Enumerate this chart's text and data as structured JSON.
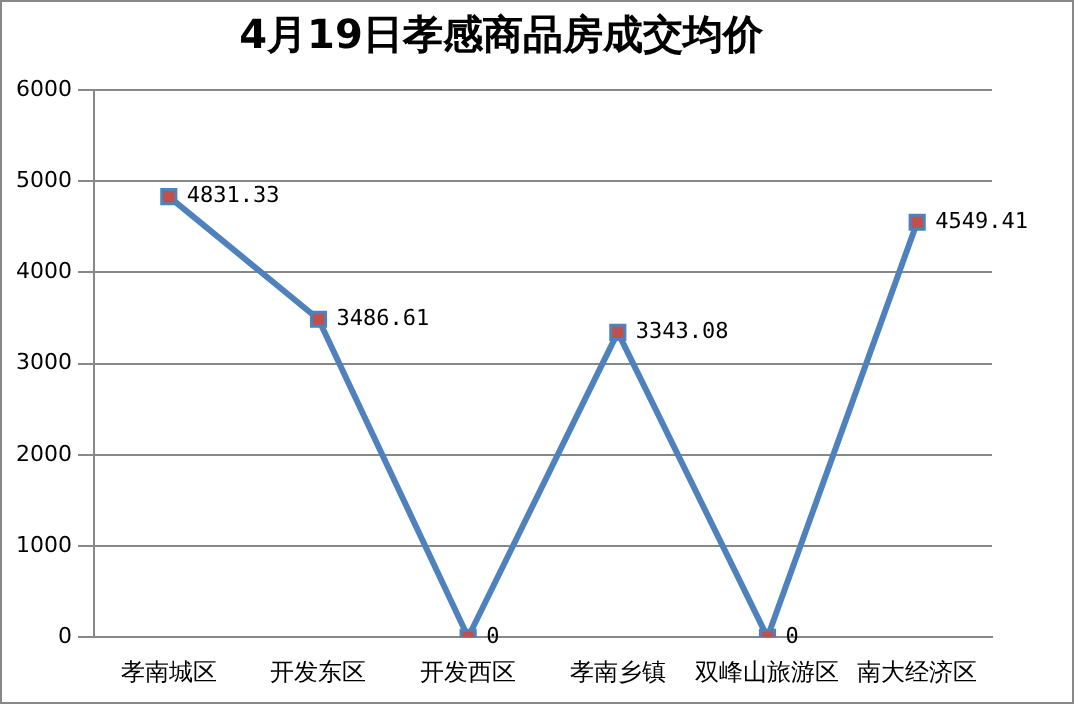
{
  "chart_data": {
    "type": "line",
    "title": "4月19日孝感商品房成交均价",
    "categories": [
      "孝南城区",
      "开发东区",
      "开发西区",
      "孝南乡镇",
      "双峰山旅游区",
      "南大经济区"
    ],
    "series": [
      {
        "color": "#4f81bd",
        "values": [
          4831.33,
          3486.61,
          0,
          3343.08,
          0,
          4549.41
        ]
      }
    ],
    "ylim": [
      0,
      6000
    ],
    "yticks": [
      0,
      1000,
      2000,
      3000,
      4000,
      5000,
      6000
    ],
    "grid": "y",
    "legend": false,
    "marker": "square",
    "line_style": "solid",
    "data_labels": true
  }
}
